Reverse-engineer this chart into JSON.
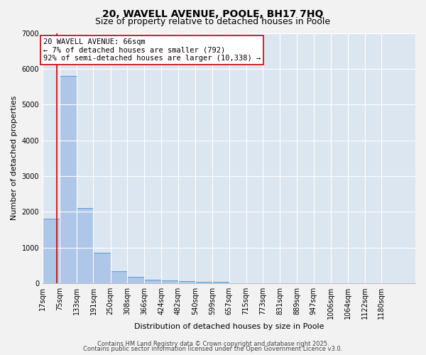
{
  "title1": "20, WAVELL AVENUE, POOLE, BH17 7HQ",
  "title2": "Size of property relative to detached houses in Poole",
  "xlabel": "Distribution of detached houses by size in Poole",
  "ylabel": "Number of detached properties",
  "bar_color": "#aec6e8",
  "bar_edge_color": "#5b9bd5",
  "background_color": "#dce6f1",
  "grid_color": "#ffffff",
  "fig_background": "#f2f2f2",
  "categories": [
    "17sqm",
    "75sqm",
    "133sqm",
    "191sqm",
    "250sqm",
    "308sqm",
    "366sqm",
    "424sqm",
    "482sqm",
    "540sqm",
    "599sqm",
    "657sqm",
    "715sqm",
    "773sqm",
    "831sqm",
    "889sqm",
    "947sqm",
    "1006sqm",
    "1064sqm",
    "1122sqm",
    "1180sqm"
  ],
  "values": [
    1800,
    5800,
    2100,
    850,
    330,
    175,
    100,
    85,
    60,
    50,
    50,
    10,
    5,
    3,
    2,
    1,
    1,
    0,
    0,
    0,
    0
  ],
  "bin_edges": [
    17,
    75,
    133,
    191,
    250,
    308,
    366,
    424,
    482,
    540,
    599,
    657,
    715,
    773,
    831,
    889,
    947,
    1006,
    1064,
    1122,
    1180,
    1238
  ],
  "property_size": 66,
  "red_line_color": "#cc0000",
  "annotation_line1": "20 WAVELL AVENUE: 66sqm",
  "annotation_line2": "← 7% of detached houses are smaller (792)",
  "annotation_line3": "92% of semi-detached houses are larger (10,338) →",
  "annotation_box_color": "#ffffff",
  "annotation_box_edge_color": "#cc0000",
  "ylim": [
    0,
    7000
  ],
  "yticks": [
    0,
    1000,
    2000,
    3000,
    4000,
    5000,
    6000,
    7000
  ],
  "footer1": "Contains HM Land Registry data © Crown copyright and database right 2025.",
  "footer2": "Contains public sector information licensed under the Open Government Licence v3.0.",
  "title_fontsize": 10,
  "subtitle_fontsize": 9,
  "axis_label_fontsize": 8,
  "tick_fontsize": 7,
  "annotation_fontsize": 7.5,
  "footer_fontsize": 6
}
